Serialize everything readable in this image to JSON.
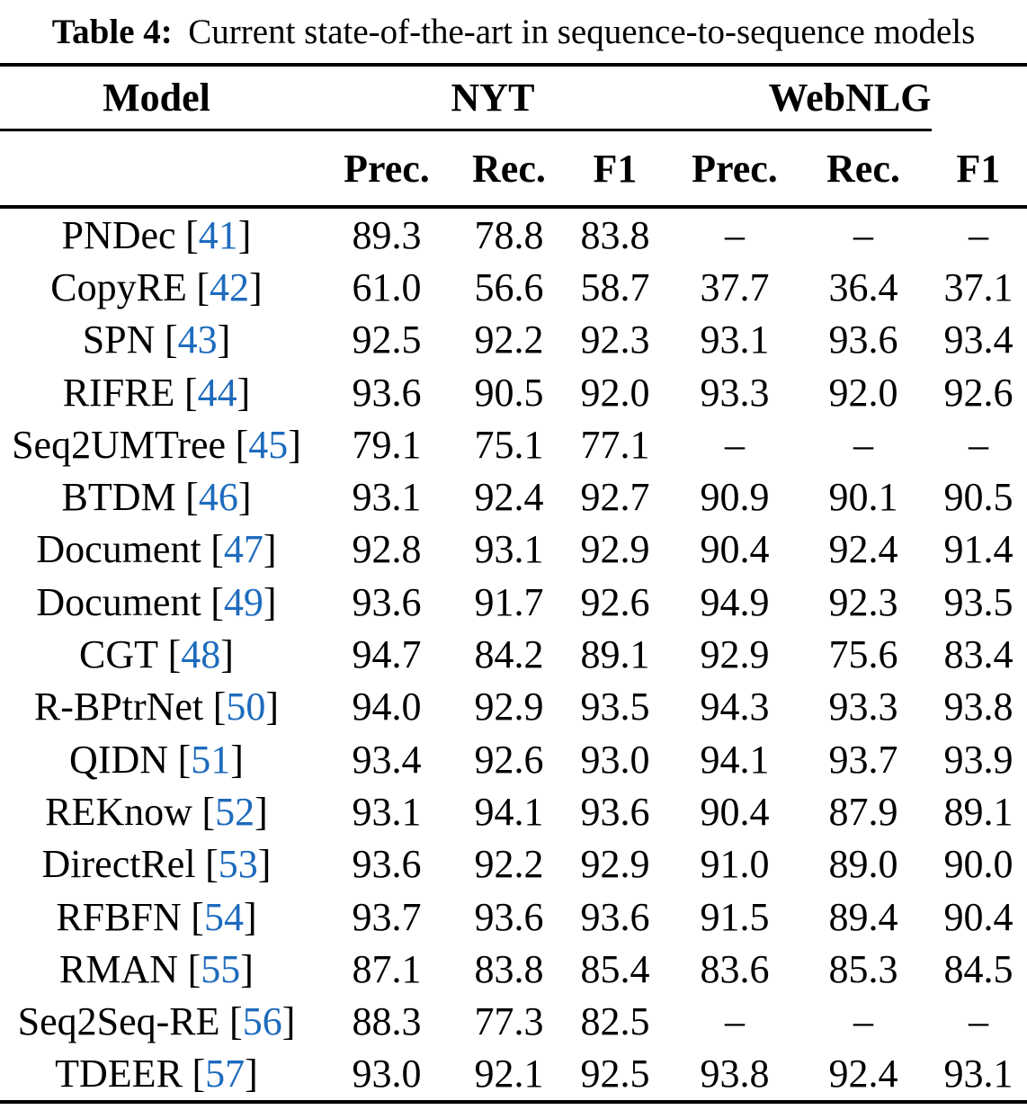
{
  "caption": {
    "label": "Table 4:",
    "text": "Current state-of-the-art in sequence-to-sequence models"
  },
  "table": {
    "group_headers": [
      "Model",
      "NYT",
      "WebNLG"
    ],
    "sub_headers": [
      "Prec.",
      "Rec.",
      "F1",
      "Prec.",
      "Rec.",
      "F1"
    ],
    "citation_open": "[",
    "citation_close": "]",
    "citation_color": "#1d6bbd",
    "missing_marker": "–",
    "rows": [
      {
        "model": "PNDec",
        "cite": "41",
        "values": [
          "89.3",
          "78.8",
          "83.8",
          "–",
          "–",
          "–"
        ]
      },
      {
        "model": "CopyRE",
        "cite": "42",
        "values": [
          "61.0",
          "56.6",
          "58.7",
          "37.7",
          "36.4",
          "37.1"
        ]
      },
      {
        "model": "SPN",
        "cite": "43",
        "values": [
          "92.5",
          "92.2",
          "92.3",
          "93.1",
          "93.6",
          "93.4"
        ]
      },
      {
        "model": "RIFRE",
        "cite": "44",
        "values": [
          "93.6",
          "90.5",
          "92.0",
          "93.3",
          "92.0",
          "92.6"
        ]
      },
      {
        "model": "Seq2UMTree",
        "cite": "45",
        "values": [
          "79.1",
          "75.1",
          "77.1",
          "–",
          "–",
          "–"
        ]
      },
      {
        "model": "BTDM",
        "cite": "46",
        "values": [
          "93.1",
          "92.4",
          "92.7",
          "90.9",
          "90.1",
          "90.5"
        ]
      },
      {
        "model": "Document",
        "cite": "47",
        "values": [
          "92.8",
          "93.1",
          "92.9",
          "90.4",
          "92.4",
          "91.4"
        ]
      },
      {
        "model": "Document",
        "cite": "49",
        "values": [
          "93.6",
          "91.7",
          "92.6",
          "94.9",
          "92.3",
          "93.5"
        ]
      },
      {
        "model": "CGT",
        "cite": "48",
        "values": [
          "94.7",
          "84.2",
          "89.1",
          "92.9",
          "75.6",
          "83.4"
        ]
      },
      {
        "model": "R-BPtrNet",
        "cite": "50",
        "values": [
          "94.0",
          "92.9",
          "93.5",
          "94.3",
          "93.3",
          "93.8"
        ]
      },
      {
        "model": "QIDN",
        "cite": "51",
        "values": [
          "93.4",
          "92.6",
          "93.0",
          "94.1",
          "93.7",
          "93.9"
        ]
      },
      {
        "model": "REKnow",
        "cite": "52",
        "values": [
          "93.1",
          "94.1",
          "93.6",
          "90.4",
          "87.9",
          "89.1"
        ]
      },
      {
        "model": "DirectRel",
        "cite": "53",
        "values": [
          "93.6",
          "92.2",
          "92.9",
          "91.0",
          "89.0",
          "90.0"
        ]
      },
      {
        "model": "RFBFN",
        "cite": "54",
        "values": [
          "93.7",
          "93.6",
          "93.6",
          "91.5",
          "89.4",
          "90.4"
        ]
      },
      {
        "model": "RMAN",
        "cite": "55",
        "values": [
          "87.1",
          "83.8",
          "85.4",
          "83.6",
          "85.3",
          "84.5"
        ]
      },
      {
        "model": "Seq2Seq-RE",
        "cite": "56",
        "values": [
          "88.3",
          "77.3",
          "82.5",
          "–",
          "–",
          "–"
        ]
      },
      {
        "model": "TDEER",
        "cite": "57",
        "values": [
          "93.0",
          "92.1",
          "92.5",
          "93.8",
          "92.4",
          "93.1"
        ]
      }
    ]
  }
}
